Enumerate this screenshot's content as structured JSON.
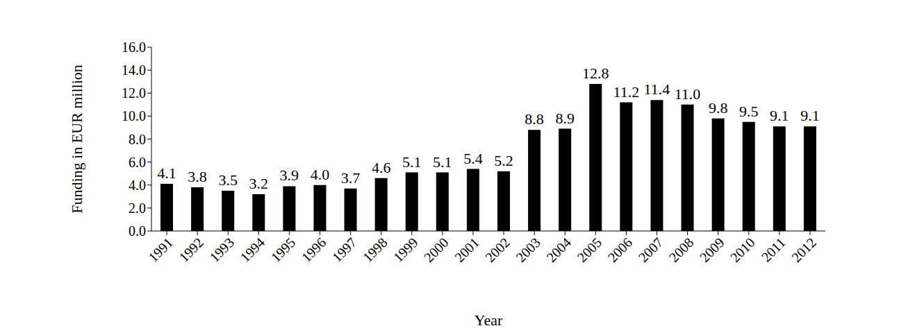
{
  "chart_data": {
    "type": "bar",
    "x_label": "Year",
    "y_label": "Funding in EUR million",
    "categories": [
      "1991",
      "1992",
      "1993",
      "1994",
      "1995",
      "1996",
      "1997",
      "1998",
      "1999",
      "2000",
      "2001",
      "2002",
      "2003",
      "2004",
      "2005",
      "2006",
      "2007",
      "2008",
      "2009",
      "2010",
      "2011",
      "2012"
    ],
    "values": [
      4.1,
      3.8,
      3.5,
      3.2,
      3.9,
      4.0,
      3.7,
      4.6,
      5.1,
      5.1,
      5.4,
      5.2,
      8.8,
      8.9,
      12.8,
      11.2,
      11.4,
      11.0,
      9.8,
      9.5,
      9.1,
      9.1
    ],
    "value_labels": [
      "4.1",
      "3.8",
      "3.5",
      "3.2",
      "3.9",
      "4.0",
      "3.7",
      "4.6",
      "5.1",
      "5.1",
      "5.4",
      "5.2",
      "8.8",
      "8.9",
      "12.8",
      "11.2",
      "11.4",
      "11.0",
      "9.8",
      "9.5",
      "9.1",
      "9.1"
    ],
    "color": "#000000",
    "ylim": [
      0,
      16
    ],
    "yticks": [
      {
        "value": 0,
        "label": "0.0"
      },
      {
        "value": 2,
        "label": "2.0"
      },
      {
        "value": 4,
        "label": "4.0"
      },
      {
        "value": 6,
        "label": "6.0"
      },
      {
        "value": 8,
        "label": "8.0"
      },
      {
        "value": 10,
        "label": "10.0"
      },
      {
        "value": 12,
        "label": "12.0"
      },
      {
        "value": 14,
        "label": "14.0"
      },
      {
        "value": 16,
        "label": "16.0"
      }
    ],
    "grid": false,
    "data_labels": true
  }
}
